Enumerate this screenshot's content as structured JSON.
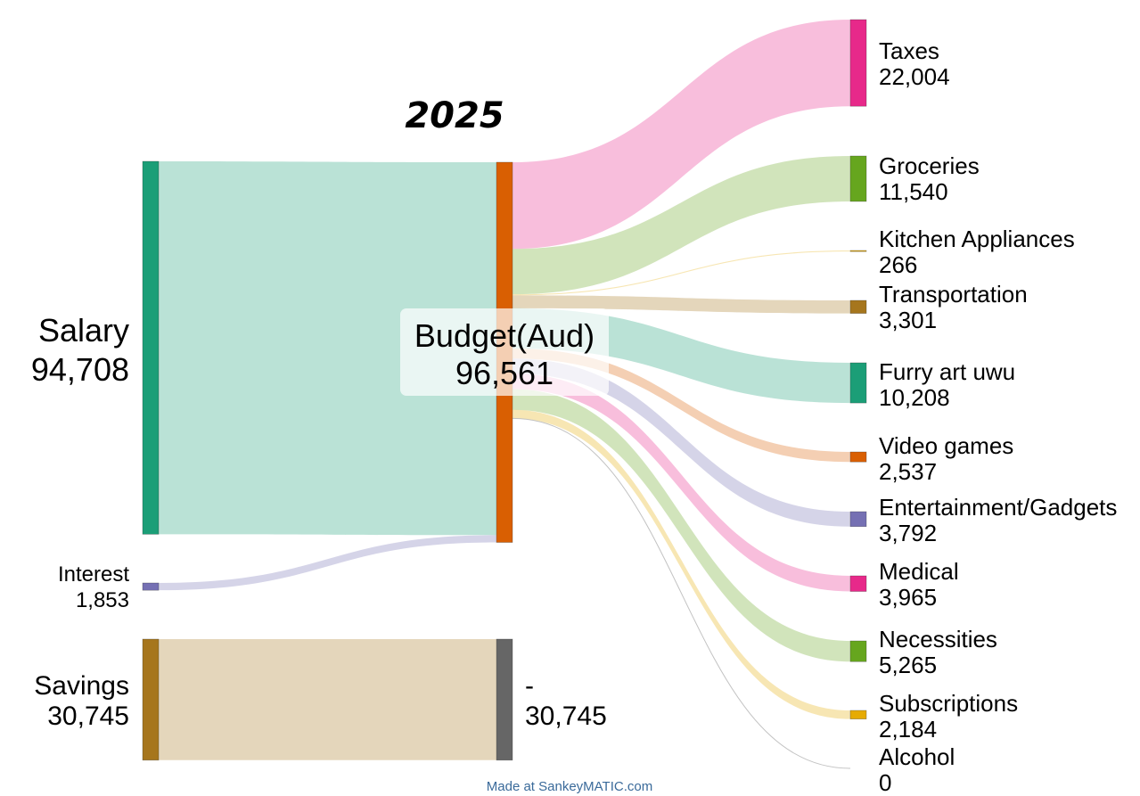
{
  "chart_data": {
    "type": "sankey",
    "title": "2025",
    "credit": "Made at SankeyMATIC.com",
    "colors": {
      "salary": "#1b9e77",
      "interest": "#7570b3",
      "savings": "#a6761d",
      "budget": "#d95f02",
      "dash": "#666666",
      "taxes": "#e7298a",
      "groceries": "#66a61e",
      "kitchen": "#e6ab02",
      "transportation": "#a6761d",
      "furry": "#1b9e77",
      "videogames": "#d95f02",
      "entertainment": "#7570b3",
      "medical": "#e7298a",
      "necessities": "#66a61e",
      "subscriptions": "#e6ab02",
      "alcohol": "#a6761d"
    },
    "nodes": [
      {
        "id": "salary",
        "label": "Salary",
        "value": 94708,
        "value_text": "94,708"
      },
      {
        "id": "interest",
        "label": "Interest",
        "value": 1853,
        "value_text": "1,853"
      },
      {
        "id": "savings",
        "label": "Savings",
        "value": 30745,
        "value_text": "30,745"
      },
      {
        "id": "budget",
        "label": "Budget(Aud)",
        "value": 96561,
        "value_text": "96,561"
      },
      {
        "id": "dash",
        "label": "-",
        "value": 30745,
        "value_text": "30,745"
      },
      {
        "id": "taxes",
        "label": "Taxes",
        "value": 22004,
        "value_text": "22,004"
      },
      {
        "id": "groceries",
        "label": "Groceries",
        "value": 11540,
        "value_text": "11,540"
      },
      {
        "id": "kitchen",
        "label": "Kitchen Appliances",
        "value": 266,
        "value_text": "266"
      },
      {
        "id": "transportation",
        "label": "Transportation",
        "value": 3301,
        "value_text": "3,301"
      },
      {
        "id": "furry",
        "label": "Furry art uwu",
        "value": 10208,
        "value_text": "10,208"
      },
      {
        "id": "videogames",
        "label": "Video games",
        "value": 2537,
        "value_text": "2,537"
      },
      {
        "id": "entertainment",
        "label": "Entertainment/Gadgets",
        "value": 3792,
        "value_text": "3,792"
      },
      {
        "id": "medical",
        "label": "Medical",
        "value": 3965,
        "value_text": "3,965"
      },
      {
        "id": "necessities",
        "label": "Necessities",
        "value": 5265,
        "value_text": "5,265"
      },
      {
        "id": "subscriptions",
        "label": "Subscriptions",
        "value": 2184,
        "value_text": "2,184"
      },
      {
        "id": "alcohol",
        "label": "Alcohol",
        "value": 0,
        "value_text": "0"
      }
    ],
    "flows": [
      {
        "from": "salary",
        "to": "budget",
        "value": 94708
      },
      {
        "from": "interest",
        "to": "budget",
        "value": 1853
      },
      {
        "from": "savings",
        "to": "dash",
        "value": 30745
      },
      {
        "from": "budget",
        "to": "taxes",
        "value": 22004
      },
      {
        "from": "budget",
        "to": "groceries",
        "value": 11540
      },
      {
        "from": "budget",
        "to": "kitchen",
        "value": 266
      },
      {
        "from": "budget",
        "to": "transportation",
        "value": 3301
      },
      {
        "from": "budget",
        "to": "furry",
        "value": 10208
      },
      {
        "from": "budget",
        "to": "videogames",
        "value": 2537
      },
      {
        "from": "budget",
        "to": "entertainment",
        "value": 3792
      },
      {
        "from": "budget",
        "to": "medical",
        "value": 3965
      },
      {
        "from": "budget",
        "to": "necessities",
        "value": 5265
      },
      {
        "from": "budget",
        "to": "subscriptions",
        "value": 2184
      },
      {
        "from": "budget",
        "to": "alcohol",
        "value": 0
      }
    ]
  }
}
